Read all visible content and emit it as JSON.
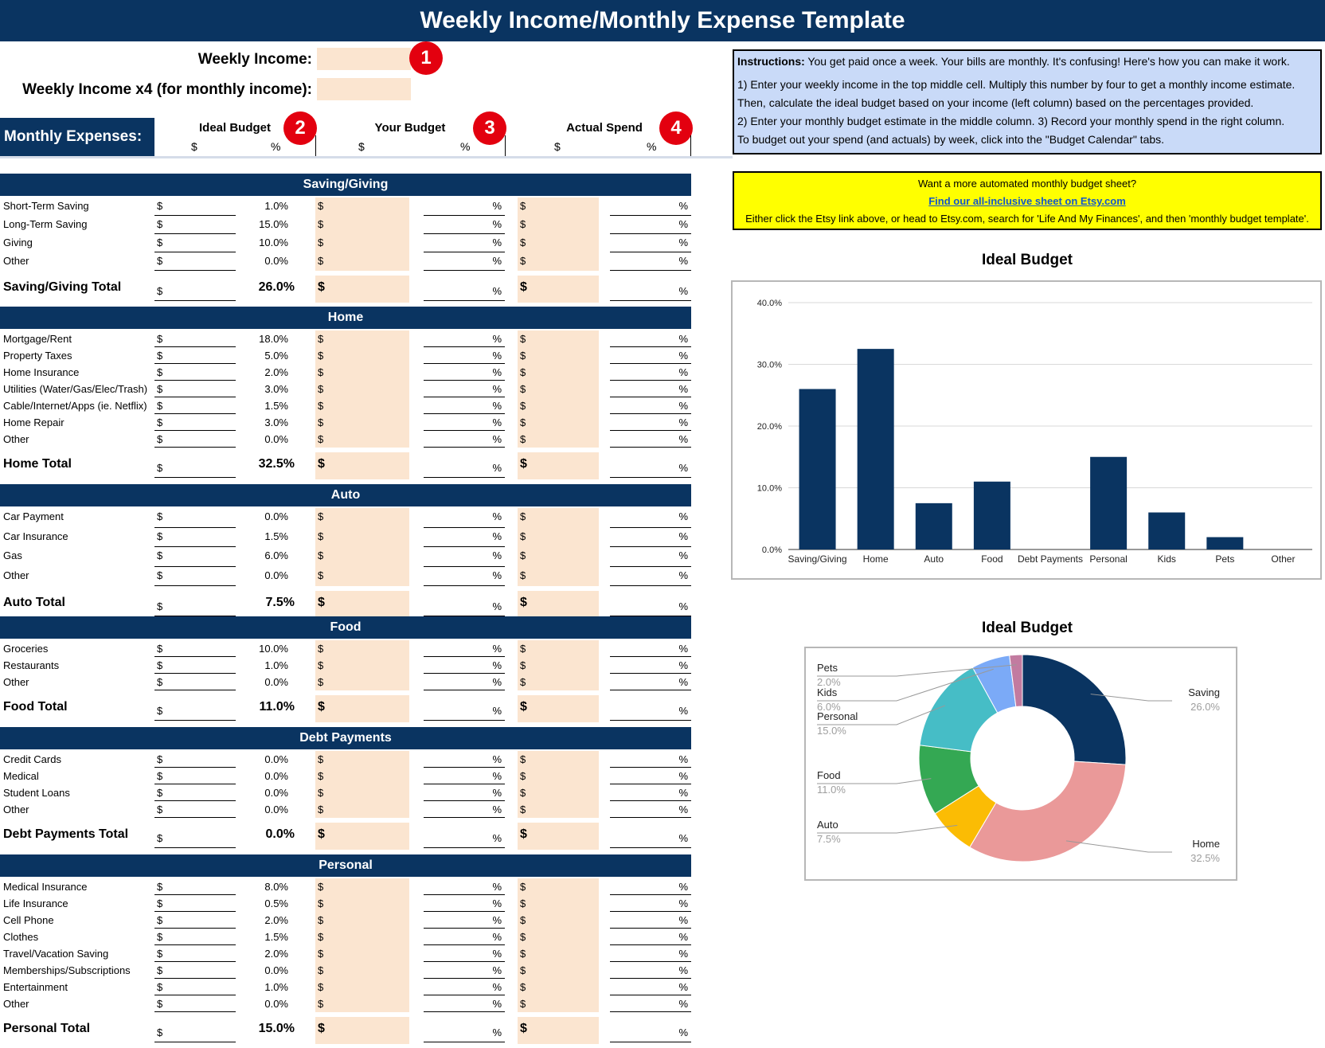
{
  "title": "Weekly Income/Monthly Expense Template",
  "income": {
    "weekly_label": "Weekly Income:",
    "monthly_label": "Weekly Income x4 (for monthly income):",
    "weekly_value": "",
    "monthly_value": ""
  },
  "badges": [
    "1",
    "2",
    "3",
    "4"
  ],
  "monthly_expenses_label": "Monthly Expenses:",
  "columns": {
    "ideal": "Ideal Budget",
    "yours": "Your Budget",
    "actual": "Actual Spend",
    "dollar": "$",
    "percent": "%"
  },
  "instructions": {
    "bold": "Instructions:",
    "line1": " You get paid once a week. Your bills are monthly. It's confusing! Here's how you can make it work.",
    "line2": "1) Enter your weekly income in the top middle cell. Multiply this number by four to get a monthly income estimate.",
    "line3": "Then, calculate the ideal budget based on your income (left column) based on the percentages provided.",
    "line4": "2) Enter your monthly budget estimate in the middle column. 3) Record your monthly spend in the right column.",
    "line5": "To budget out your spend (and actuals) by week, click into the \"Budget Calendar\" tabs."
  },
  "promo": {
    "line1": "Want a more automated monthly budget sheet?",
    "link": "Find our all-inclusive sheet on Etsy.com",
    "line3": "Either click the Etsy link above, or head to Etsy.com, search for 'Life And My Finances', and then 'monthly budget template'."
  },
  "sections": [
    {
      "name": "Saving/Giving",
      "total_label": "Saving/Giving Total",
      "total_pct": "26.0%",
      "rows": [
        [
          "Short-Term Saving",
          "1.0%"
        ],
        [
          "Long-Term Saving",
          "15.0%"
        ],
        [
          "Giving",
          "10.0%"
        ],
        [
          "Other",
          "0.0%"
        ]
      ]
    },
    {
      "name": "Home",
      "total_label": "Home Total",
      "total_pct": "32.5%",
      "rows": [
        [
          "Mortgage/Rent",
          "18.0%"
        ],
        [
          "Property Taxes",
          "5.0%"
        ],
        [
          "Home Insurance",
          "2.0%"
        ],
        [
          "Utilities (Water/Gas/Elec/Trash)",
          "3.0%"
        ],
        [
          "Cable/Internet/Apps (ie. Netflix)",
          "1.5%"
        ],
        [
          "Home Repair",
          "3.0%"
        ],
        [
          "Other",
          "0.0%"
        ]
      ]
    },
    {
      "name": "Auto",
      "total_label": "Auto Total",
      "total_pct": "7.5%",
      "rows": [
        [
          "Car Payment",
          "0.0%"
        ],
        [
          "Car Insurance",
          "1.5%"
        ],
        [
          "Gas",
          "6.0%"
        ],
        [
          "Other",
          "0.0%"
        ]
      ]
    },
    {
      "name": "Food",
      "total_label": "Food Total",
      "total_pct": "11.0%",
      "rows": [
        [
          "Groceries",
          "10.0%"
        ],
        [
          "Restaurants",
          "1.0%"
        ],
        [
          "Other",
          "0.0%"
        ]
      ]
    },
    {
      "name": "Debt Payments",
      "total_label": "Debt Payments Total",
      "total_pct": "0.0%",
      "rows": [
        [
          "Credit Cards",
          "0.0%"
        ],
        [
          "Medical",
          "0.0%"
        ],
        [
          "Student Loans",
          "0.0%"
        ],
        [
          "Other",
          "0.0%"
        ]
      ]
    },
    {
      "name": "Personal",
      "total_label": "Personal Total",
      "total_pct": "15.0%",
      "rows": [
        [
          "Medical Insurance",
          "8.0%"
        ],
        [
          "Life Insurance",
          "0.5%"
        ],
        [
          "Cell Phone",
          "2.0%"
        ],
        [
          "Clothes",
          "1.5%"
        ],
        [
          "Travel/Vacation Saving",
          "2.0%"
        ],
        [
          "Memberships/Subscriptions",
          "0.0%"
        ],
        [
          "Entertainment",
          "1.0%"
        ],
        [
          "Other",
          "0.0%"
        ]
      ]
    }
  ],
  "chart_data": [
    {
      "type": "bar",
      "title": "Ideal Budget",
      "categories": [
        "Saving/Giving",
        "Home",
        "Auto",
        "Food",
        "Debt Payments",
        "Personal",
        "Kids",
        "Pets",
        "Other"
      ],
      "values": [
        26.0,
        32.5,
        7.5,
        11.0,
        0.0,
        15.0,
        6.0,
        2.0,
        0.0
      ],
      "ylim": [
        0,
        40
      ],
      "yticks": [
        "0.0%",
        "10.0%",
        "20.0%",
        "30.0%",
        "40.0%"
      ],
      "grid": true,
      "color": "#0a3461"
    },
    {
      "type": "pie",
      "title": "Ideal Budget",
      "slices": [
        {
          "label": "Saving",
          "value": 26.0,
          "pct": "26.0%",
          "color": "#0a3461"
        },
        {
          "label": "Home",
          "value": 32.5,
          "pct": "32.5%",
          "color": "#ea9999"
        },
        {
          "label": "Auto",
          "value": 7.5,
          "pct": "7.5%",
          "color": "#fbbc04"
        },
        {
          "label": "Food",
          "value": 11.0,
          "pct": "11.0%",
          "color": "#34a853"
        },
        {
          "label": "Personal",
          "value": 15.0,
          "pct": "15.0%",
          "color": "#46bdc6"
        },
        {
          "label": "Kids",
          "value": 6.0,
          "pct": "6.0%",
          "color": "#7baaf7"
        },
        {
          "label": "Pets",
          "value": 2.0,
          "pct": "2.0%",
          "color": "#c27ba0"
        }
      ]
    }
  ]
}
